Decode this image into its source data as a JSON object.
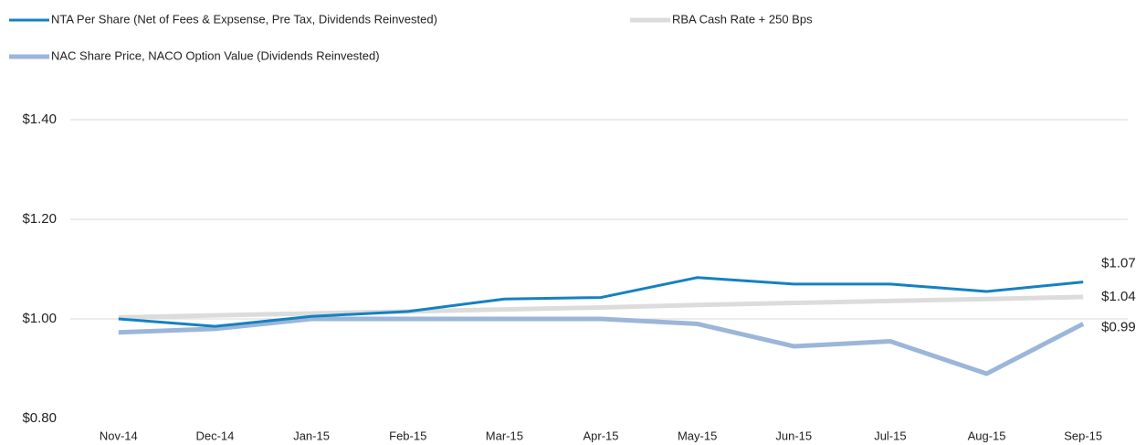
{
  "chart_data": {
    "type": "line",
    "categories": [
      "Nov-14",
      "Dec-14",
      "Jan-15",
      "Feb-15",
      "Mar-15",
      "Apr-15",
      "May-15",
      "Jun-15",
      "Jul-15",
      "Aug-15",
      "Sep-15"
    ],
    "series": [
      {
        "name": "NTA Per Share (Net of Fees & Expsense, Pre Tax, Dividends Reinvested)",
        "color": "#1481c1",
        "values": [
          1.0,
          0.985,
          1.005,
          1.015,
          1.04,
          1.043,
          1.083,
          1.07,
          1.07,
          1.055,
          1.074
        ],
        "value_labels": [
          null,
          null,
          null,
          null,
          null,
          null,
          null,
          null,
          null,
          null,
          "$1.07"
        ]
      },
      {
        "name": "RBA Cash Rate + 250 Bps",
        "color": "#dcdcdc",
        "values": [
          1.003,
          1.007,
          1.011,
          1.015,
          1.019,
          1.023,
          1.028,
          1.032,
          1.036,
          1.04,
          1.044
        ],
        "value_labels": [
          null,
          null,
          null,
          null,
          null,
          null,
          null,
          null,
          null,
          null,
          "$1.04"
        ]
      },
      {
        "name": "NAC Share Price, NACO Option Value (Dividends Reinvested)",
        "color": "#9bb6d9",
        "values": [
          0.973,
          0.98,
          1.0,
          1.0,
          1.0,
          1.0,
          0.99,
          0.945,
          0.955,
          0.89,
          0.99
        ],
        "value_labels": [
          null,
          null,
          null,
          null,
          null,
          null,
          null,
          null,
          null,
          null,
          "$0.99"
        ]
      }
    ],
    "ylim": [
      0.8,
      1.4
    ],
    "yticks": [
      {
        "value": 0.8,
        "label": "$0.80"
      },
      {
        "value": 1.0,
        "label": "$1.00"
      },
      {
        "value": 1.2,
        "label": "$1.20"
      },
      {
        "value": 1.4,
        "label": "$1.40"
      }
    ],
    "grid": true
  }
}
